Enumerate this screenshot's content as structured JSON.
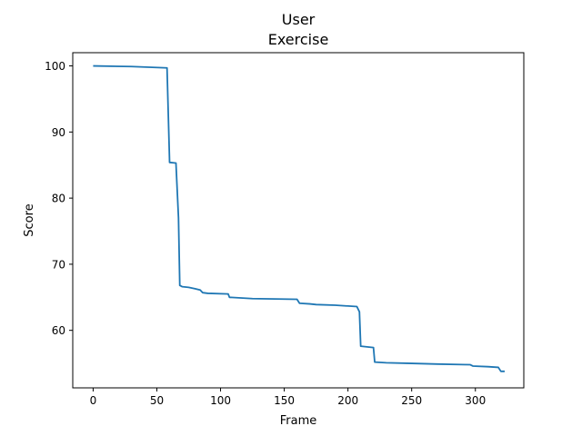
{
  "chart_data": {
    "type": "line",
    "title": "User",
    "subtitle": "Exercise",
    "xlabel": "Frame",
    "ylabel": "Score",
    "xlim": [
      -16,
      338
    ],
    "ylim": [
      51.3,
      102
    ],
    "xticks": [
      0,
      50,
      100,
      150,
      200,
      250,
      300
    ],
    "yticks": [
      60,
      70,
      80,
      90,
      100
    ],
    "grid": false,
    "legend": "none",
    "series": [
      {
        "color": "#1f77b4",
        "x": [
          0,
          30,
          58,
          60,
          65,
          67,
          68,
          70,
          75,
          80,
          84,
          86,
          90,
          106,
          107,
          125,
          160,
          162,
          170,
          175,
          190,
          207,
          209,
          210,
          220,
          221,
          230,
          250,
          270,
          296,
          298,
          310,
          318,
          320,
          323
        ],
        "y": [
          100,
          99.9,
          99.7,
          85.4,
          85.3,
          77,
          66.8,
          66.6,
          66.5,
          66.3,
          66.1,
          65.7,
          65.6,
          65.5,
          65,
          64.8,
          64.7,
          64.1,
          64,
          63.9,
          63.8,
          63.6,
          62.8,
          57.6,
          57.4,
          55.2,
          55.1,
          55,
          54.9,
          54.8,
          54.6,
          54.5,
          54.4,
          53.8,
          53.8
        ]
      }
    ]
  }
}
